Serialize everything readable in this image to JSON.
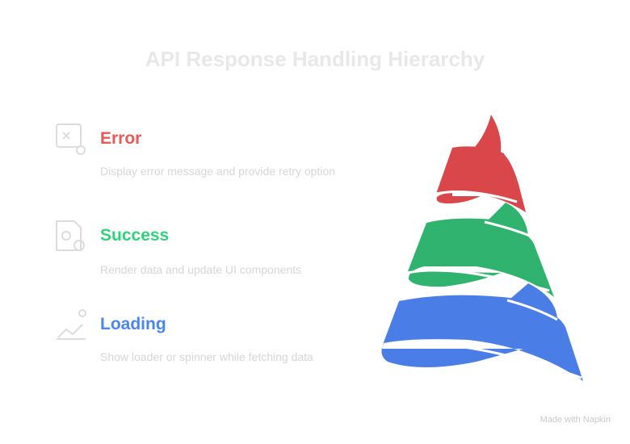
{
  "title": "API Response Handling Hierarchy",
  "items": [
    {
      "label": "Error",
      "description": "Display error message and provide retry option",
      "color": "#e85a55",
      "icon": "error-window-icon"
    },
    {
      "label": "Success",
      "description": "Render data and update UI components",
      "color": "#2fd37a",
      "icon": "success-document-icon"
    },
    {
      "label": "Loading",
      "description": "Show loader or spinner while fetching data",
      "color": "#4a86f0",
      "icon": "loading-chart-icon"
    }
  ],
  "spiral_colors": {
    "error": "#d9474a",
    "success": "#2fb36e",
    "loading": "#4a7ee6"
  },
  "credit": "Made with Napkin"
}
